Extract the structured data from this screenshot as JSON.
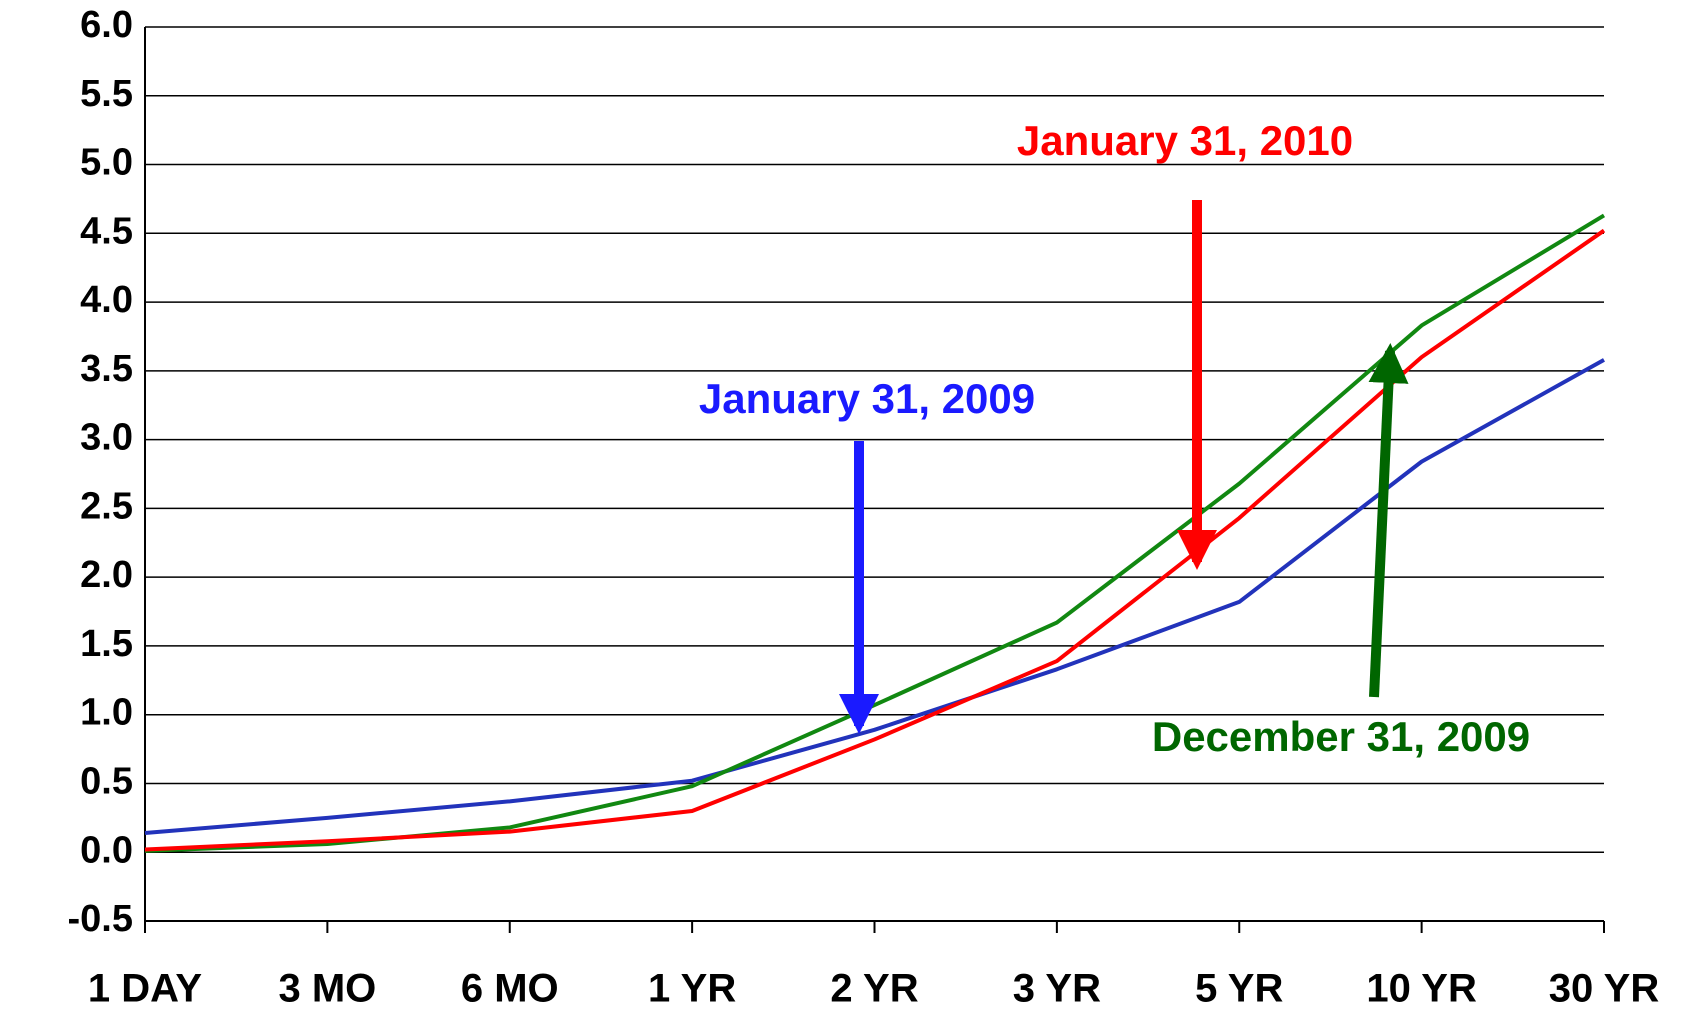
{
  "chart_data": {
    "type": "line",
    "categories": [
      "1 DAY",
      "3 MO",
      "6 MO",
      "1 YR",
      "2 YR",
      "3 YR",
      "5 YR",
      "10 YR",
      "30 YR"
    ],
    "series": [
      {
        "name": "January 31, 2009",
        "color": "#2233bb",
        "values": [
          0.14,
          0.25,
          0.37,
          0.52,
          0.89,
          1.33,
          1.82,
          2.84,
          3.58
        ]
      },
      {
        "name": "December 31, 2009",
        "color": "#118811",
        "values": [
          0.01,
          0.06,
          0.18,
          0.48,
          1.07,
          1.67,
          2.68,
          3.83,
          4.63
        ]
      },
      {
        "name": "January 31, 2010",
        "color": "#ff0000",
        "values": [
          0.02,
          0.08,
          0.15,
          0.3,
          0.82,
          1.39,
          2.43,
          3.6,
          4.52
        ]
      }
    ],
    "ylim": [
      -0.5,
      6
    ],
    "yticks": [
      -0.5,
      {
        "value": 0,
        "label": "0.0"
      },
      0.5,
      {
        "value": 1,
        "label": "1.0"
      },
      1.5,
      {
        "value": 2,
        "label": "2.0"
      },
      2.5,
      {
        "value": 3,
        "label": "3.0"
      },
      3.5,
      {
        "value": 4,
        "label": "4.0"
      },
      4.5,
      {
        "value": 5,
        "label": "5.0"
      },
      5.5,
      {
        "value": 6,
        "label": "6.0"
      }
    ],
    "grid": true
  }
}
